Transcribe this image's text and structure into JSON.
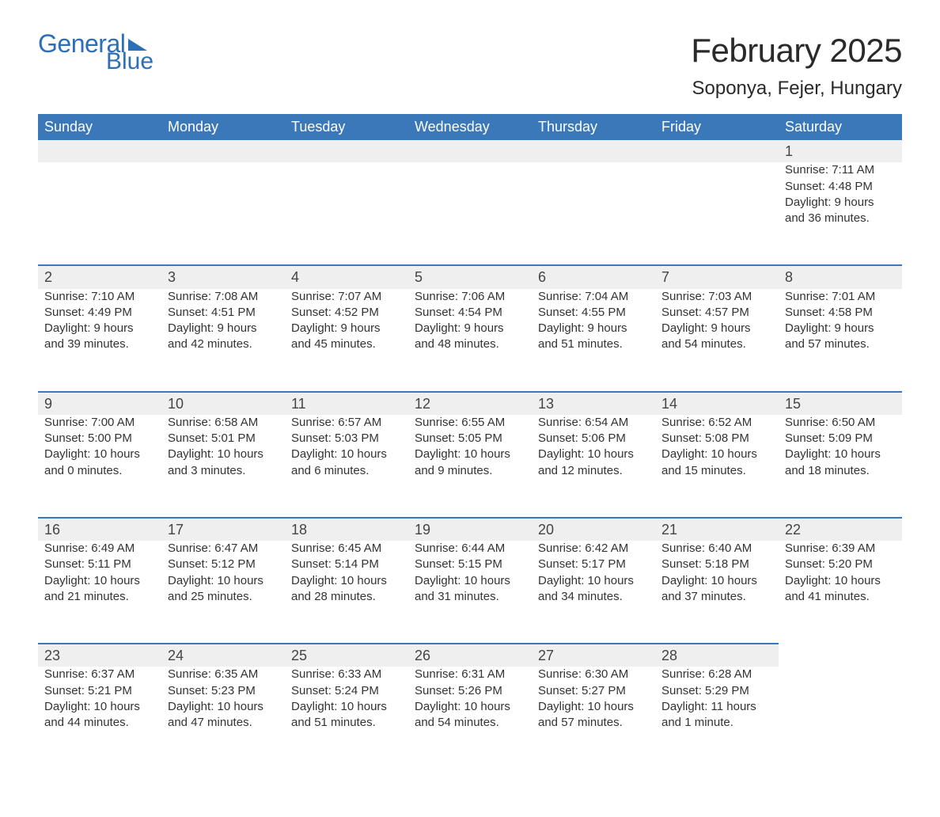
{
  "logo": {
    "line1": "General",
    "line2": "Blue",
    "brand_color": "#2d6fb6"
  },
  "title": "February 2025",
  "location": "Soponya, Fejer, Hungary",
  "colors": {
    "header_bg": "#3a78b9",
    "header_text": "#ffffff",
    "daynum_bg": "#efefef",
    "border_accent": "#3a78b9",
    "text": "#333333",
    "page_bg": "#ffffff"
  },
  "typography": {
    "title_fontsize": 42,
    "location_fontsize": 24,
    "header_fontsize": 18,
    "body_fontsize": 15,
    "font_family": "Arial"
  },
  "weekdays": [
    "Sunday",
    "Monday",
    "Tuesday",
    "Wednesday",
    "Thursday",
    "Friday",
    "Saturday"
  ],
  "first_day_column": 6,
  "days": [
    {
      "n": 1,
      "sunrise": "7:11 AM",
      "sunset": "4:48 PM",
      "daylight": "9 hours and 36 minutes."
    },
    {
      "n": 2,
      "sunrise": "7:10 AM",
      "sunset": "4:49 PM",
      "daylight": "9 hours and 39 minutes."
    },
    {
      "n": 3,
      "sunrise": "7:08 AM",
      "sunset": "4:51 PM",
      "daylight": "9 hours and 42 minutes."
    },
    {
      "n": 4,
      "sunrise": "7:07 AM",
      "sunset": "4:52 PM",
      "daylight": "9 hours and 45 minutes."
    },
    {
      "n": 5,
      "sunrise": "7:06 AM",
      "sunset": "4:54 PM",
      "daylight": "9 hours and 48 minutes."
    },
    {
      "n": 6,
      "sunrise": "7:04 AM",
      "sunset": "4:55 PM",
      "daylight": "9 hours and 51 minutes."
    },
    {
      "n": 7,
      "sunrise": "7:03 AM",
      "sunset": "4:57 PM",
      "daylight": "9 hours and 54 minutes."
    },
    {
      "n": 8,
      "sunrise": "7:01 AM",
      "sunset": "4:58 PM",
      "daylight": "9 hours and 57 minutes."
    },
    {
      "n": 9,
      "sunrise": "7:00 AM",
      "sunset": "5:00 PM",
      "daylight": "10 hours and 0 minutes."
    },
    {
      "n": 10,
      "sunrise": "6:58 AM",
      "sunset": "5:01 PM",
      "daylight": "10 hours and 3 minutes."
    },
    {
      "n": 11,
      "sunrise": "6:57 AM",
      "sunset": "5:03 PM",
      "daylight": "10 hours and 6 minutes."
    },
    {
      "n": 12,
      "sunrise": "6:55 AM",
      "sunset": "5:05 PM",
      "daylight": "10 hours and 9 minutes."
    },
    {
      "n": 13,
      "sunrise": "6:54 AM",
      "sunset": "5:06 PM",
      "daylight": "10 hours and 12 minutes."
    },
    {
      "n": 14,
      "sunrise": "6:52 AM",
      "sunset": "5:08 PM",
      "daylight": "10 hours and 15 minutes."
    },
    {
      "n": 15,
      "sunrise": "6:50 AM",
      "sunset": "5:09 PM",
      "daylight": "10 hours and 18 minutes."
    },
    {
      "n": 16,
      "sunrise": "6:49 AM",
      "sunset": "5:11 PM",
      "daylight": "10 hours and 21 minutes."
    },
    {
      "n": 17,
      "sunrise": "6:47 AM",
      "sunset": "5:12 PM",
      "daylight": "10 hours and 25 minutes."
    },
    {
      "n": 18,
      "sunrise": "6:45 AM",
      "sunset": "5:14 PM",
      "daylight": "10 hours and 28 minutes."
    },
    {
      "n": 19,
      "sunrise": "6:44 AM",
      "sunset": "5:15 PM",
      "daylight": "10 hours and 31 minutes."
    },
    {
      "n": 20,
      "sunrise": "6:42 AM",
      "sunset": "5:17 PM",
      "daylight": "10 hours and 34 minutes."
    },
    {
      "n": 21,
      "sunrise": "6:40 AM",
      "sunset": "5:18 PM",
      "daylight": "10 hours and 37 minutes."
    },
    {
      "n": 22,
      "sunrise": "6:39 AM",
      "sunset": "5:20 PM",
      "daylight": "10 hours and 41 minutes."
    },
    {
      "n": 23,
      "sunrise": "6:37 AM",
      "sunset": "5:21 PM",
      "daylight": "10 hours and 44 minutes."
    },
    {
      "n": 24,
      "sunrise": "6:35 AM",
      "sunset": "5:23 PM",
      "daylight": "10 hours and 47 minutes."
    },
    {
      "n": 25,
      "sunrise": "6:33 AM",
      "sunset": "5:24 PM",
      "daylight": "10 hours and 51 minutes."
    },
    {
      "n": 26,
      "sunrise": "6:31 AM",
      "sunset": "5:26 PM",
      "daylight": "10 hours and 54 minutes."
    },
    {
      "n": 27,
      "sunrise": "6:30 AM",
      "sunset": "5:27 PM",
      "daylight": "10 hours and 57 minutes."
    },
    {
      "n": 28,
      "sunrise": "6:28 AM",
      "sunset": "5:29 PM",
      "daylight": "11 hours and 1 minute."
    }
  ],
  "labels": {
    "sunrise": "Sunrise:",
    "sunset": "Sunset:",
    "daylight": "Daylight:"
  }
}
